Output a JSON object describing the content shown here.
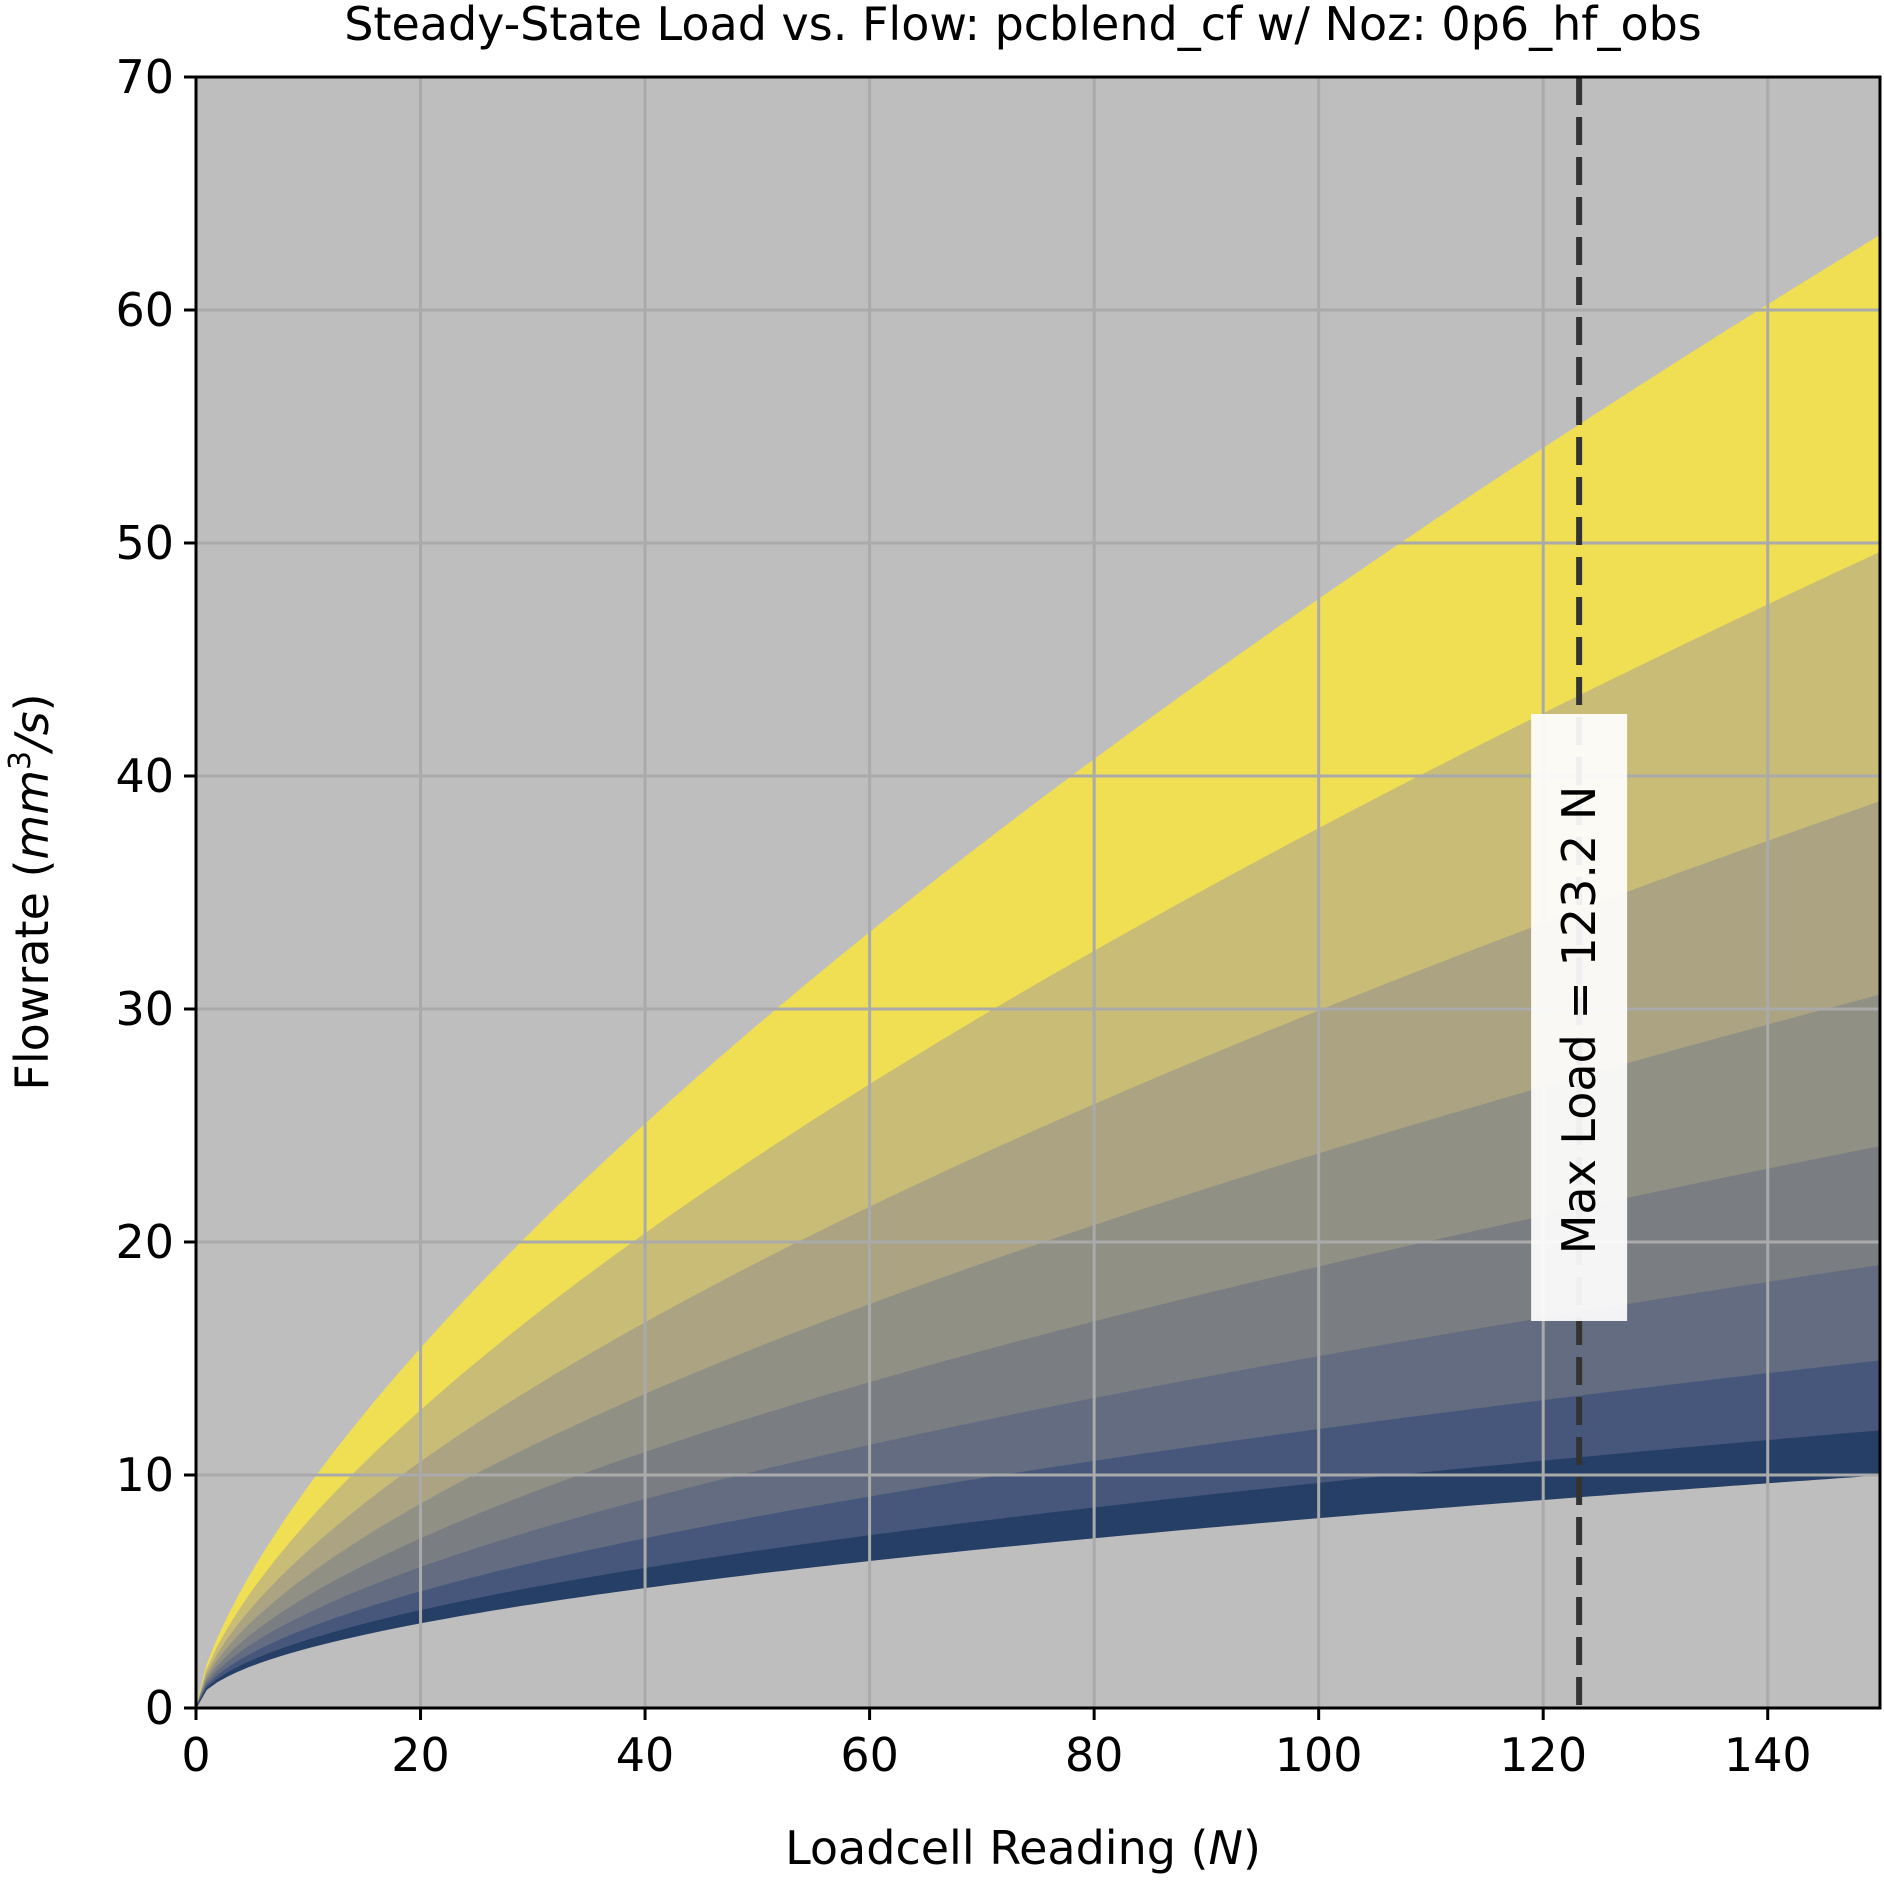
{
  "chart_data": {
    "type": "area",
    "title": "Steady-State Load vs. Flow: pcblend_cf w/ Noz: 0p6_hf_obs",
    "xlabel": {
      "prefix": "Loadcell Reading (",
      "var": "N",
      "suffix": ")"
    },
    "ylabel": {
      "prefix": "Flowrate (",
      "var": "mm",
      "sup": "3",
      "post": "/s",
      "suffix": ")"
    },
    "xlim": [
      0,
      150
    ],
    "ylim": [
      0,
      70
    ],
    "x_ticks": [
      0,
      20,
      40,
      60,
      80,
      100,
      120,
      140
    ],
    "y_ticks": [
      0,
      10,
      20,
      30,
      40,
      50,
      60,
      70
    ],
    "grid": true,
    "background_color": "#bebebe",
    "grid_color": "#aaaaaa",
    "bands": [
      {
        "color": "#f0df52",
        "lower_at_150": 49.6,
        "upper_at_150": 63.2
      },
      {
        "color": "#c8bc76",
        "lower_at_150": 38.9,
        "upper_at_150": 49.6
      },
      {
        "color": "#aba381",
        "lower_at_150": 30.6,
        "upper_at_150": 38.9
      },
      {
        "color": "#909084",
        "lower_at_150": 24.1,
        "upper_at_150": 30.6
      },
      {
        "color": "#7a7d82",
        "lower_at_150": 19.0,
        "upper_at_150": 24.1
      },
      {
        "color": "#636c80",
        "lower_at_150": 14.9,
        "upper_at_150": 19.0
      },
      {
        "color": "#47577c",
        "lower_at_150": 11.9,
        "upper_at_150": 14.9
      },
      {
        "color": "#263f66",
        "lower_at_150": 10.0,
        "upper_at_150": 11.9
      }
    ],
    "curve_exponent": 0.5,
    "upper_curve_exponent": 0.7,
    "max_load": {
      "x": 123.2,
      "label": "Max Load = 123.2 N",
      "line_color": "#333333"
    }
  }
}
